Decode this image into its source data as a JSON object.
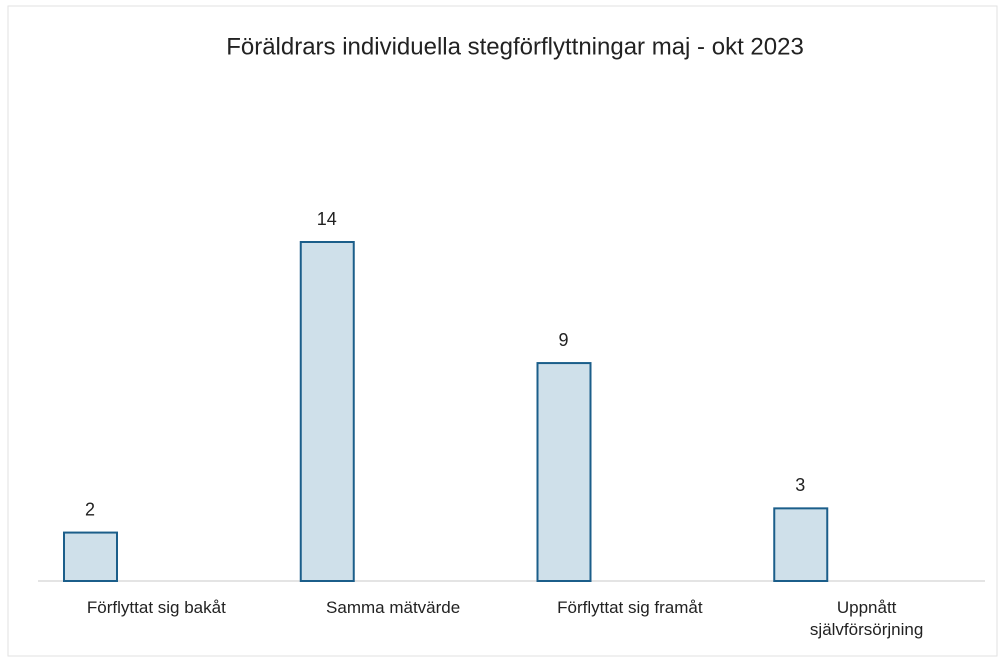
{
  "chart_data": {
    "type": "bar",
    "title": "Föräldrars individuella stegförflyttningar maj - okt 2023",
    "categories": [
      "Förflyttat sig bakåt",
      "Samma mätvärde",
      "Förflyttat sig framåt",
      "Uppnått självförsörjning"
    ],
    "values": [
      2,
      14,
      9,
      3
    ],
    "color": "#cfe0ea",
    "edge_color": "#1b5e8a"
  }
}
